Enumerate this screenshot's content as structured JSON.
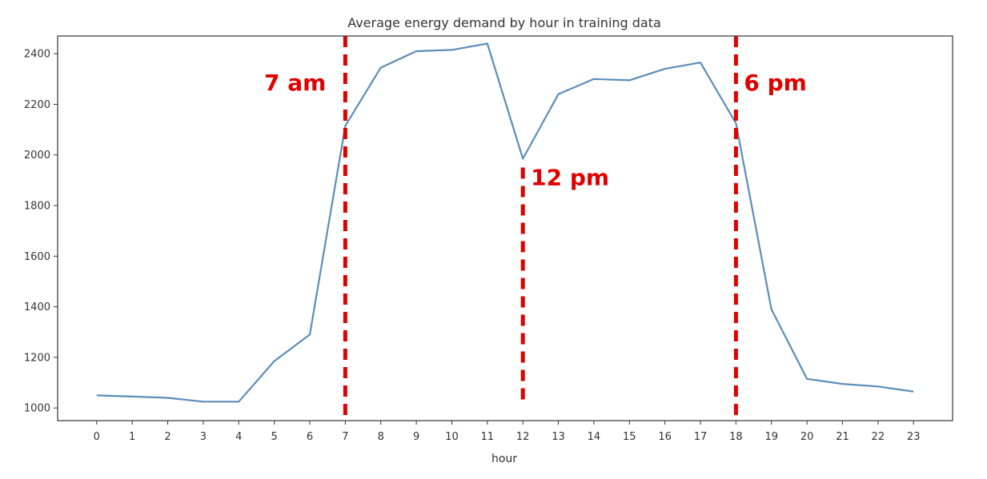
{
  "chart_data": {
    "type": "line",
    "title": "Average energy demand by hour in training data",
    "xlabel": "hour",
    "ylabel": "",
    "x": [
      0,
      1,
      2,
      3,
      4,
      5,
      6,
      7,
      8,
      9,
      10,
      11,
      12,
      13,
      14,
      15,
      16,
      17,
      18,
      19,
      20,
      21,
      22,
      23
    ],
    "y": [
      1050,
      1045,
      1040,
      1025,
      1025,
      1185,
      1290,
      2115,
      2345,
      2410,
      2415,
      2440,
      1985,
      2240,
      2300,
      2295,
      2340,
      2365,
      2125,
      1390,
      1115,
      1095,
      1085,
      1065
    ],
    "xlim": [
      -1.1,
      24.1
    ],
    "ylim": [
      950,
      2470
    ],
    "xticks": [
      0,
      1,
      2,
      3,
      4,
      5,
      6,
      7,
      8,
      9,
      10,
      11,
      12,
      13,
      14,
      15,
      16,
      17,
      18,
      19,
      20,
      21,
      22,
      23
    ],
    "yticks": [
      1000,
      1200,
      1400,
      1600,
      1800,
      2000,
      2200,
      2400
    ],
    "grid": false,
    "line_color": "#5b8db8",
    "annotations": [
      {
        "label": "7 am",
        "x": 7,
        "y_from": 950,
        "y_to": 2470,
        "label_side": "left",
        "label_y": 2255
      },
      {
        "label": "12 pm",
        "x": 12,
        "y_from": 1010,
        "y_to": 1950,
        "label_side": "right",
        "label_y": 1880
      },
      {
        "label": "6 pm",
        "x": 18,
        "y_from": 950,
        "y_to": 2470,
        "label_side": "right",
        "label_y": 2255
      }
    ],
    "annotation_color": "#e00000"
  }
}
